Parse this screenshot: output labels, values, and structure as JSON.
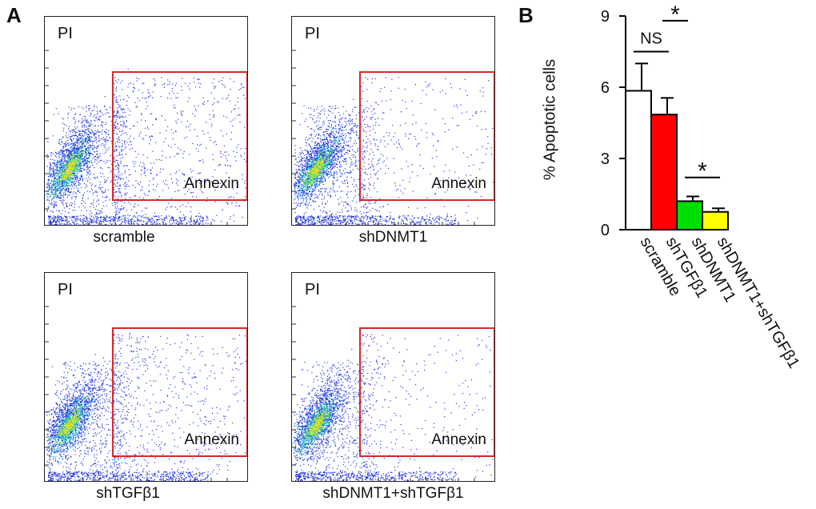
{
  "panels": {
    "a": {
      "letter": "A"
    },
    "b": {
      "letter": "B"
    }
  },
  "flow_plots": [
    {
      "pi_label": "PI",
      "gate_label": "Annexin",
      "sample": "scramble",
      "apoptotic_percent": 5.85
    },
    {
      "pi_label": "PI",
      "gate_label": "Annexin",
      "sample": "shDNMT1",
      "apoptotic_percent": 1.2
    },
    {
      "pi_label": "PI",
      "gate_label": "Annexin",
      "sample": "shTGFβ1",
      "apoptotic_percent": 4.85
    },
    {
      "pi_label": "PI",
      "gate_label": "Annexin",
      "sample": "shDNMT1+shTGFβ1",
      "apoptotic_percent": 0.75
    }
  ],
  "chart_data": {
    "type": "bar",
    "title": "",
    "xlabel": "",
    "ylabel": "% Apoptotic cells",
    "ylim": [
      0,
      9
    ],
    "yticks": [
      0,
      3,
      6,
      9
    ],
    "categories": [
      "scramble",
      "shTGFβ1",
      "shDNMT1",
      "shDNMT1+shTGFβ1"
    ],
    "values": [
      5.85,
      4.85,
      1.2,
      0.75
    ],
    "errors": [
      1.15,
      0.7,
      0.2,
      0.15
    ],
    "colors": [
      "#ffffff",
      "#ff0000",
      "#00dd00",
      "#ffff00"
    ],
    "comparisons": [
      {
        "from": "scramble",
        "to": "shTGFβ1",
        "label": "NS"
      },
      {
        "from": "shTGFβ1",
        "to": "shDNMT1",
        "label": "*"
      },
      {
        "from": "shDNMT1",
        "to": "shDNMT1+shTGFβ1",
        "label": "*"
      }
    ]
  }
}
